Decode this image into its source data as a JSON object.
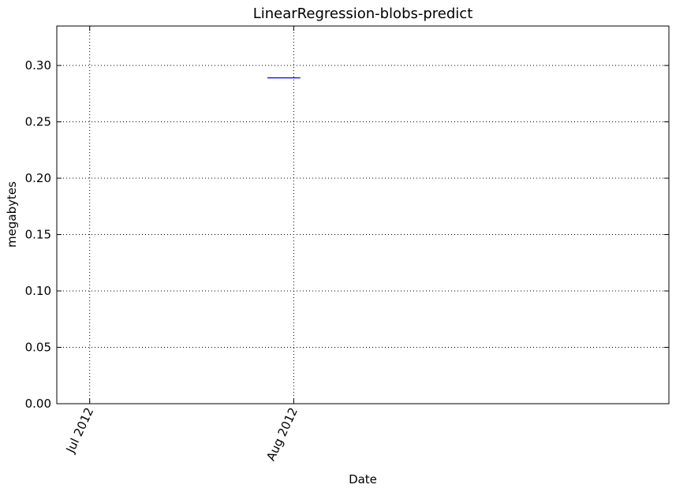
{
  "chart_data": {
    "type": "line",
    "title": "LinearRegression-blobs-predict",
    "xlabel": "Date",
    "ylabel": "megabytes",
    "x_axis": {
      "type": "date",
      "range": [
        "2012-06-26",
        "2012-09-27"
      ],
      "ticks": [
        {
          "date": "2012-07-01",
          "label": "Jul 2012"
        },
        {
          "date": "2012-08-01",
          "label": "Aug 2012"
        }
      ]
    },
    "ylim": [
      0,
      0.335
    ],
    "yticks": [
      {
        "value": 0.0,
        "label": "0.00"
      },
      {
        "value": 0.05,
        "label": "0.05"
      },
      {
        "value": 0.1,
        "label": "0.10"
      },
      {
        "value": 0.15,
        "label": "0.15"
      },
      {
        "value": 0.2,
        "label": "0.20"
      },
      {
        "value": 0.25,
        "label": "0.25"
      },
      {
        "value": 0.3,
        "label": "0.30"
      }
    ],
    "grid": true,
    "series": [
      {
        "color": "#0000ff",
        "points": [
          {
            "x": "2012-07-28",
            "y": 0.289
          },
          {
            "x": "2012-08-02",
            "y": 0.289
          }
        ]
      }
    ]
  }
}
